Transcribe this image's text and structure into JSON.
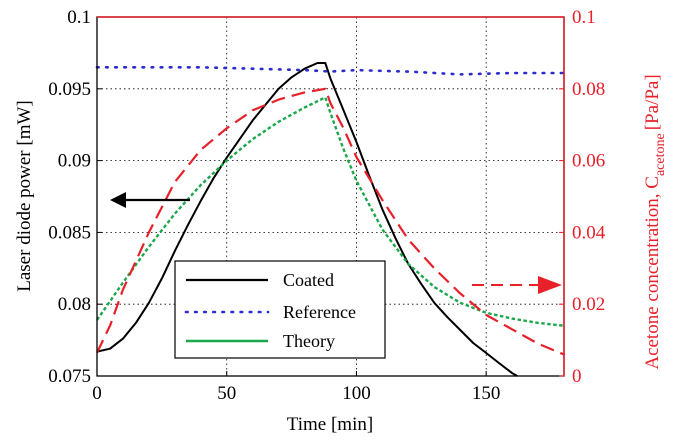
{
  "chart_data": {
    "type": "line",
    "xlabel": "Time [min]",
    "ylabel_left": "Laser diode power [mW]",
    "ylabel_right": "Acetone concentration, C",
    "ylabel_right_subscript": "acetone",
    "ylabel_right_unit": "[Pa/Pa]",
    "xlim": [
      0,
      180
    ],
    "ylim_left": [
      0.075,
      0.1
    ],
    "ylim_right": [
      0,
      0.1
    ],
    "x_ticks": [
      "0",
      "50",
      "100",
      "150"
    ],
    "y_left_ticks": [
      "0.075",
      "0.08",
      "0.085",
      "0.09",
      "0.095",
      "0.1"
    ],
    "y_right_ticks": [
      "0",
      "0.02",
      "0.04",
      "0.06",
      "0.08",
      "0.1"
    ],
    "grid": true,
    "legend_position": "bottom-center",
    "colors": {
      "coated": "#000000",
      "reference": "#2b2bd0",
      "theory": "#1aa84a",
      "acetone": "#e8202a"
    },
    "series": [
      {
        "name": "Coated",
        "axis": "left",
        "style": "solid",
        "x": [
          0,
          5,
          10,
          15,
          20,
          25,
          30,
          35,
          40,
          45,
          50,
          55,
          60,
          65,
          70,
          75,
          80,
          85,
          88,
          90,
          95,
          100,
          105,
          110,
          115,
          120,
          125,
          130,
          135,
          140,
          145,
          150,
          155,
          160,
          162
        ],
        "y": [
          0.0767,
          0.0769,
          0.0776,
          0.0787,
          0.0801,
          0.0818,
          0.0837,
          0.0855,
          0.0872,
          0.0888,
          0.0902,
          0.0915,
          0.0928,
          0.0939,
          0.095,
          0.0958,
          0.0964,
          0.0968,
          0.0968,
          0.0957,
          0.0935,
          0.0913,
          0.0889,
          0.0866,
          0.0846,
          0.0828,
          0.0814,
          0.0801,
          0.0791,
          0.0782,
          0.0773,
          0.0766,
          0.0759,
          0.0752,
          0.075
        ]
      },
      {
        "name": "Reference",
        "axis": "left",
        "style": "dotted",
        "x": [
          0,
          20,
          40,
          60,
          80,
          90,
          100,
          120,
          140,
          160,
          180
        ],
        "y": [
          0.0965,
          0.0965,
          0.0965,
          0.0964,
          0.0963,
          0.0962,
          0.0963,
          0.0962,
          0.096,
          0.0961,
          0.0961
        ]
      },
      {
        "name": "Theory",
        "axis": "left",
        "style": "dashed",
        "x": [
          0,
          10,
          20,
          30,
          40,
          50,
          60,
          70,
          80,
          88,
          90,
          95,
          100,
          110,
          120,
          130,
          140,
          150,
          160,
          170,
          180
        ],
        "y": [
          0.0789,
          0.0815,
          0.084,
          0.0863,
          0.0883,
          0.09,
          0.0915,
          0.0927,
          0.0937,
          0.0944,
          0.0933,
          0.0908,
          0.0886,
          0.0852,
          0.0828,
          0.0812,
          0.0801,
          0.0794,
          0.079,
          0.0787,
          0.0785
        ]
      },
      {
        "name": "Acetone concentration",
        "axis": "right",
        "style": "dashed",
        "x": [
          0,
          5,
          10,
          20,
          30,
          40,
          50,
          60,
          70,
          80,
          88,
          90,
          95,
          100,
          110,
          120,
          130,
          140,
          150,
          160,
          170,
          180
        ],
        "y": [
          0.0065,
          0.014,
          0.024,
          0.04,
          0.054,
          0.063,
          0.069,
          0.074,
          0.077,
          0.079,
          0.08,
          0.076,
          0.069,
          0.061,
          0.049,
          0.038,
          0.03,
          0.023,
          0.017,
          0.013,
          0.009,
          0.006
        ]
      }
    ],
    "annotations": [
      {
        "type": "arrow",
        "direction": "left",
        "refers_to": "left axis",
        "color": "#000000"
      },
      {
        "type": "arrow",
        "direction": "right",
        "refers_to": "right axis",
        "color": "#e8202a"
      }
    ]
  },
  "legend": {
    "items": [
      "Coated",
      "Reference",
      "Theory"
    ]
  }
}
